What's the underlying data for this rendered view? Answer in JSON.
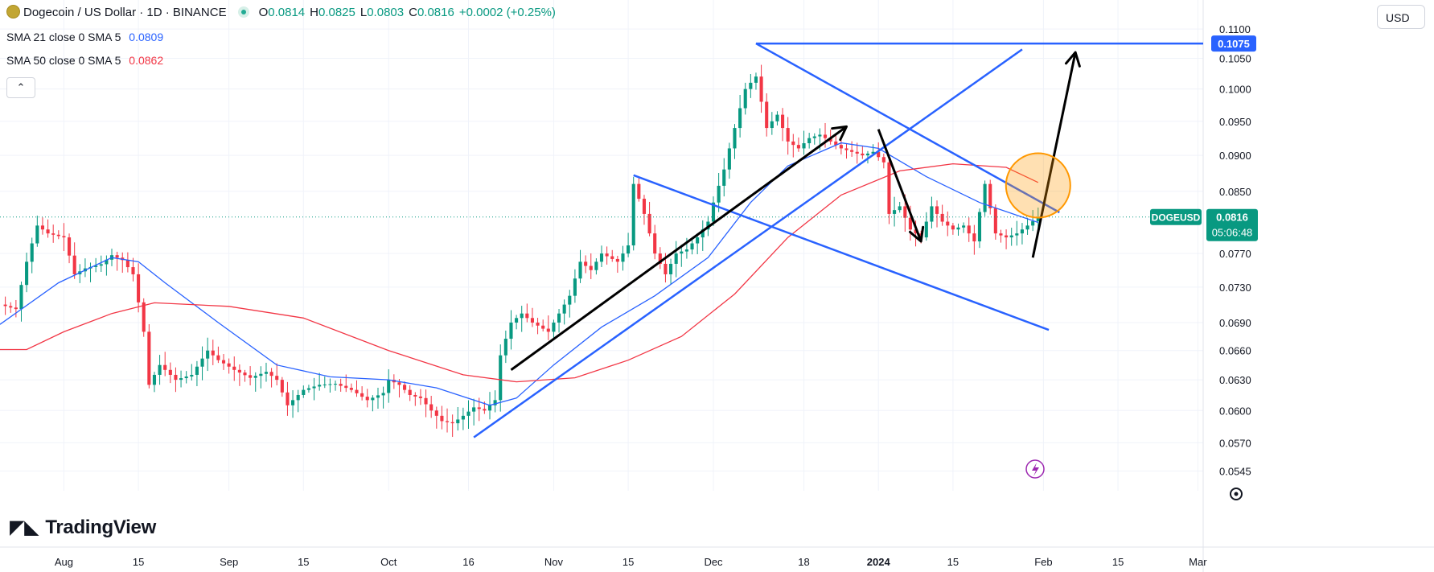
{
  "header": {
    "symbol_title": "Dogecoin / US Dollar · 1D · BINANCE",
    "ohlc": [
      {
        "k": "O",
        "v": "0.0814"
      },
      {
        "k": "H",
        "v": "0.0825"
      },
      {
        "k": "L",
        "v": "0.0803"
      },
      {
        "k": "C",
        "v": "0.0816"
      },
      {
        "k": "",
        "v": "+0.0002 (+0.25%)"
      }
    ],
    "currency": "USD"
  },
  "indicators": [
    {
      "label": "SMA 21 close 0 SMA 5",
      "value": "0.0809",
      "color": "#2962ff"
    },
    {
      "label": "SMA 50 close 0 SMA 5",
      "value": "0.0862",
      "color": "#f23645"
    }
  ],
  "collapse_glyph": "⌃",
  "brand": "TradingView",
  "chart_data": {
    "type": "candlestick",
    "title": "Dogecoin / US Dollar · 1D · BINANCE",
    "y_axis": {
      "ticks": [
        "0.1100",
        "0.1050",
        "0.1000",
        "0.0950",
        "0.0900",
        "0.0850",
        "0.0770",
        "0.0730",
        "0.0690",
        "0.0660",
        "0.0630",
        "0.0600",
        "0.0570",
        "0.0545"
      ],
      "scale": "log",
      "range": [
        0.0535,
        0.112
      ]
    },
    "x_axis": {
      "ticks": [
        {
          "label": "Aug",
          "date": "2023-08-01"
        },
        {
          "label": "15",
          "date": "2023-08-15"
        },
        {
          "label": "Sep",
          "date": "2023-09-01"
        },
        {
          "label": "15",
          "date": "2023-09-15"
        },
        {
          "label": "Oct",
          "date": "2023-10-01"
        },
        {
          "label": "16",
          "date": "2023-10-16"
        },
        {
          "label": "Nov",
          "date": "2023-11-01"
        },
        {
          "label": "15",
          "date": "2023-11-15"
        },
        {
          "label": "Dec",
          "date": "2023-12-01"
        },
        {
          "label": "18",
          "date": "2023-12-18"
        },
        {
          "label": "2024",
          "date": "2024-01-01"
        },
        {
          "label": "15",
          "date": "2024-01-15"
        },
        {
          "label": "Feb",
          "date": "2024-02-01"
        },
        {
          "label": "15",
          "date": "2024-02-15"
        },
        {
          "label": "Mar",
          "date": "2024-03-01"
        }
      ],
      "range": [
        "2023-07-20",
        "2024-03-02"
      ]
    },
    "price_labels": [
      {
        "text": "0.1075",
        "value": 0.1075,
        "color": "#2962ff"
      },
      {
        "symbol": "DOGEUSD",
        "text": "0.0816",
        "countdown": "05:06:48",
        "value": 0.0816,
        "color": "#089981"
      }
    ],
    "close_path": [
      [
        "2023-07-20",
        0.071
      ],
      [
        "2023-07-23",
        0.0705
      ],
      [
        "2023-07-25",
        0.076
      ],
      [
        "2023-07-27",
        0.0805
      ],
      [
        "2023-07-29",
        0.0795
      ],
      [
        "2023-08-01",
        0.079
      ],
      [
        "2023-08-03",
        0.0745
      ],
      [
        "2023-08-05",
        0.0752
      ],
      [
        "2023-08-08",
        0.0757
      ],
      [
        "2023-08-10",
        0.0768
      ],
      [
        "2023-08-12",
        0.0762
      ],
      [
        "2023-08-14",
        0.0745
      ],
      [
        "2023-08-16",
        0.068
      ],
      [
        "2023-08-17",
        0.0625
      ],
      [
        "2023-08-19",
        0.0645
      ],
      [
        "2023-08-22",
        0.063
      ],
      [
        "2023-08-25",
        0.0635
      ],
      [
        "2023-08-28",
        0.066
      ],
      [
        "2023-08-30",
        0.065
      ],
      [
        "2023-09-02",
        0.064
      ],
      [
        "2023-09-05",
        0.0632
      ],
      [
        "2023-09-08",
        0.0638
      ],
      [
        "2023-09-10",
        0.063
      ],
      [
        "2023-09-12",
        0.0605
      ],
      [
        "2023-09-15",
        0.062
      ],
      [
        "2023-09-18",
        0.0625
      ],
      [
        "2023-09-21",
        0.0626
      ],
      [
        "2023-09-24",
        0.062
      ],
      [
        "2023-09-27",
        0.061
      ],
      [
        "2023-09-30",
        0.0617
      ],
      [
        "2023-10-01",
        0.063
      ],
      [
        "2023-10-03",
        0.0625
      ],
      [
        "2023-10-05",
        0.0615
      ],
      [
        "2023-10-07",
        0.0612
      ],
      [
        "2023-10-09",
        0.06
      ],
      [
        "2023-10-11",
        0.059
      ],
      [
        "2023-10-13",
        0.0588
      ],
      [
        "2023-10-15",
        0.0595
      ],
      [
        "2023-10-17",
        0.0603
      ],
      [
        "2023-10-19",
        0.06
      ],
      [
        "2023-10-21",
        0.061
      ],
      [
        "2023-10-22",
        0.0655
      ],
      [
        "2023-10-24",
        0.069
      ],
      [
        "2023-10-26",
        0.07
      ],
      [
        "2023-10-28",
        0.069
      ],
      [
        "2023-10-31",
        0.068
      ],
      [
        "2023-11-02",
        0.07
      ],
      [
        "2023-11-04",
        0.072
      ],
      [
        "2023-11-06",
        0.076
      ],
      [
        "2023-11-08",
        0.075
      ],
      [
        "2023-11-10",
        0.077
      ],
      [
        "2023-11-13",
        0.076
      ],
      [
        "2023-11-15",
        0.078
      ],
      [
        "2023-11-16",
        0.086
      ],
      [
        "2023-11-18",
        0.082
      ],
      [
        "2023-11-20",
        0.077
      ],
      [
        "2023-11-22",
        0.0745
      ],
      [
        "2023-11-24",
        0.077
      ],
      [
        "2023-11-26",
        0.0775
      ],
      [
        "2023-11-28",
        0.079
      ],
      [
        "2023-11-30",
        0.081
      ],
      [
        "2023-12-01",
        0.0835
      ],
      [
        "2023-12-03",
        0.088
      ],
      [
        "2023-12-05",
        0.094
      ],
      [
        "2023-12-07",
        0.1
      ],
      [
        "2023-12-09",
        0.102
      ],
      [
        "2023-12-11",
        0.094
      ],
      [
        "2023-12-13",
        0.096
      ],
      [
        "2023-12-15",
        0.092
      ],
      [
        "2023-12-17",
        0.091
      ],
      [
        "2023-12-19",
        0.0925
      ],
      [
        "2023-12-21",
        0.093
      ],
      [
        "2023-12-23",
        0.092
      ],
      [
        "2023-12-25",
        0.091
      ],
      [
        "2023-12-27",
        0.0905
      ],
      [
        "2023-12-29",
        0.09
      ],
      [
        "2023-12-31",
        0.0905
      ],
      [
        "2024-01-02",
        0.089
      ],
      [
        "2024-01-03",
        0.082
      ],
      [
        "2024-01-05",
        0.083
      ],
      [
        "2024-01-07",
        0.08
      ],
      [
        "2024-01-09",
        0.079
      ],
      [
        "2024-01-11",
        0.083
      ],
      [
        "2024-01-13",
        0.081
      ],
      [
        "2024-01-15",
        0.08
      ],
      [
        "2024-01-17",
        0.0805
      ],
      [
        "2024-01-19",
        0.0785
      ],
      [
        "2024-01-21",
        0.086
      ],
      [
        "2024-01-23",
        0.0795
      ],
      [
        "2024-01-25",
        0.079
      ],
      [
        "2024-01-27",
        0.0795
      ],
      [
        "2024-01-29",
        0.0805
      ],
      [
        "2024-01-31",
        0.0816
      ]
    ],
    "series": [
      {
        "name": "SMA 21 close 0 SMA 5",
        "color": "#2962ff",
        "points": [
          [
            "2023-07-20",
            0.0688
          ],
          [
            "2023-07-31",
            0.0735
          ],
          [
            "2023-08-10",
            0.0765
          ],
          [
            "2023-08-15",
            0.076
          ],
          [
            "2023-08-20",
            0.0735
          ],
          [
            "2023-08-30",
            0.069
          ],
          [
            "2023-09-10",
            0.0645
          ],
          [
            "2023-09-20",
            0.0633
          ],
          [
            "2023-10-01",
            0.063
          ],
          [
            "2023-10-10",
            0.0622
          ],
          [
            "2023-10-20",
            0.0605
          ],
          [
            "2023-10-25",
            0.0612
          ],
          [
            "2023-11-01",
            0.0645
          ],
          [
            "2023-11-10",
            0.0685
          ],
          [
            "2023-11-20",
            0.072
          ],
          [
            "2023-11-30",
            0.0765
          ],
          [
            "2023-12-08",
            0.0835
          ],
          [
            "2023-12-15",
            0.0885
          ],
          [
            "2023-12-25",
            0.0918
          ],
          [
            "2024-01-01",
            0.091
          ],
          [
            "2024-01-10",
            0.087
          ],
          [
            "2024-01-20",
            0.0835
          ],
          [
            "2024-01-31",
            0.0809
          ]
        ]
      },
      {
        "name": "SMA 50 close 0 SMA 5",
        "color": "#f23645",
        "points": [
          [
            "2023-07-20",
            0.0661
          ],
          [
            "2023-07-25",
            0.0661
          ],
          [
            "2023-08-01",
            0.068
          ],
          [
            "2023-08-10",
            0.07
          ],
          [
            "2023-08-18",
            0.0712
          ],
          [
            "2023-09-01",
            0.0708
          ],
          [
            "2023-09-15",
            0.0695
          ],
          [
            "2023-10-01",
            0.066
          ],
          [
            "2023-10-15",
            0.0635
          ],
          [
            "2023-10-25",
            0.0628
          ],
          [
            "2023-11-05",
            0.0632
          ],
          [
            "2023-11-15",
            0.065
          ],
          [
            "2023-11-25",
            0.0675
          ],
          [
            "2023-12-05",
            0.0722
          ],
          [
            "2023-12-15",
            0.079
          ],
          [
            "2023-12-25",
            0.0845
          ],
          [
            "2024-01-05",
            0.0878
          ],
          [
            "2024-01-15",
            0.0888
          ],
          [
            "2024-01-25",
            0.0883
          ],
          [
            "2024-01-31",
            0.0862
          ]
        ]
      }
    ],
    "annotations": {
      "trendlines": [
        {
          "color": "#2962ff",
          "from": [
            "2023-10-17",
            0.0575
          ],
          "to": [
            "2024-01-28",
            0.1065
          ]
        },
        {
          "color": "#2962ff",
          "from": [
            "2023-12-09",
            0.1075
          ],
          "to": [
            "2024-02-04",
            0.0822
          ]
        },
        {
          "color": "#2962ff",
          "from": [
            "2023-11-16",
            0.0872
          ],
          "to": [
            "2024-02-02",
            0.0682
          ]
        },
        {
          "color": "#2962ff",
          "from": [
            "2023-12-09",
            0.1075
          ],
          "to": [
            "2024-03-02",
            0.1075
          ]
        }
      ],
      "arrows": [
        {
          "color": "#000000",
          "from": [
            "2023-10-24",
            0.064
          ],
          "to": [
            "2023-12-26",
            0.0942
          ]
        },
        {
          "color": "#000000",
          "from": [
            "2024-01-01",
            0.0938
          ],
          "to": [
            "2024-01-09",
            0.0785
          ]
        },
        {
          "color": "#000000",
          "from": [
            "2024-01-30",
            0.0765
          ],
          "to": [
            "2024-02-07",
            0.106
          ]
        }
      ],
      "highlight_circle": {
        "color": "#ff9800",
        "center": [
          "2024-01-31",
          0.0858
        ]
      }
    }
  }
}
